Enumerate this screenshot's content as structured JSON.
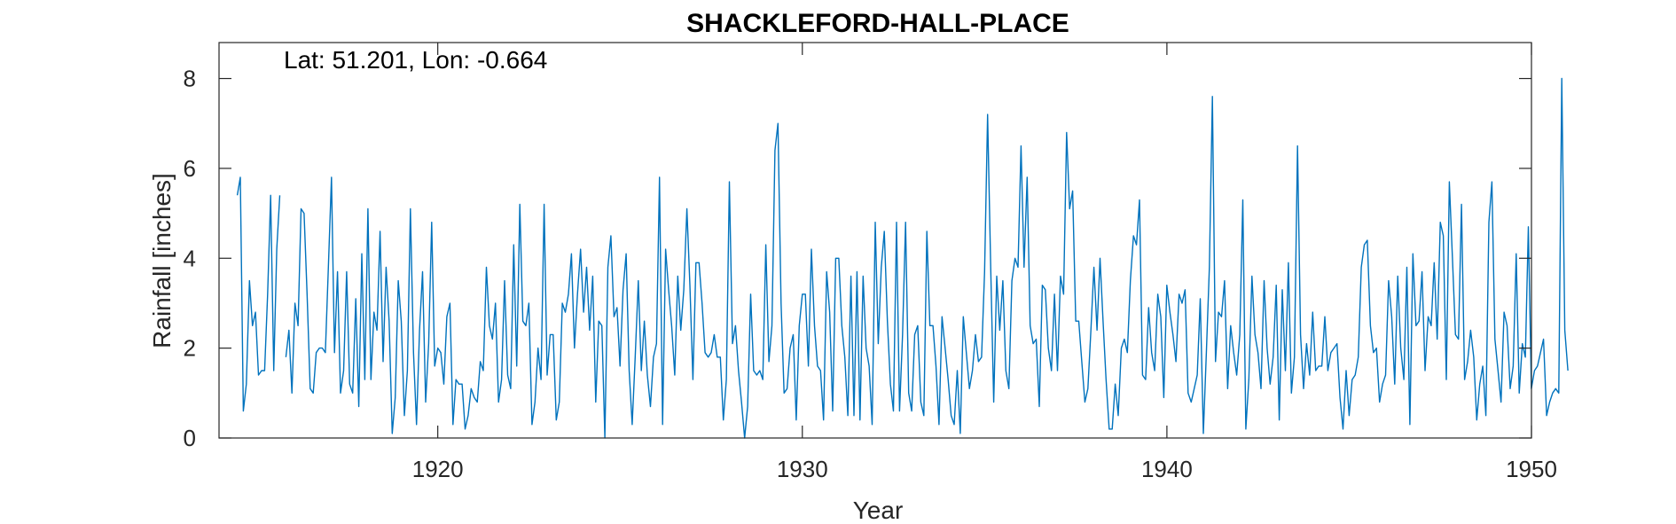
{
  "chart_data": {
    "type": "line",
    "title": "SHACKLEFORD-HALL-PLACE",
    "annotation": "Lat: 51.201, Lon: -0.664",
    "xlabel": "Year",
    "ylabel": "Rainfall [inches]",
    "xlim": [
      1914.0,
      1950.0
    ],
    "ylim": [
      0,
      8.8
    ],
    "xticks": [
      1920,
      1930,
      1940,
      1950
    ],
    "yticks": [
      0,
      2,
      4,
      6,
      8
    ],
    "grid": false,
    "line_color": "#0072BD",
    "series": [
      {
        "x_start": 1914.5,
        "x_step": 0.08333,
        "values": [
          5.4,
          5.8,
          0.6,
          1.2,
          3.5,
          2.5,
          2.8,
          1.4,
          1.5,
          1.5,
          3.2,
          5.4,
          1.5,
          4.2,
          5.4,
          null,
          1.8,
          2.4,
          1.0,
          3.0,
          2.5,
          5.1,
          5.0,
          3.2,
          1.1,
          1.0,
          1.9,
          2.0,
          2.0,
          1.9,
          3.8,
          5.8,
          1.9,
          3.7,
          1.0,
          1.5,
          3.7,
          1.2,
          1.0,
          3.1,
          0.7,
          4.1,
          1.3,
          5.1,
          1.3,
          2.8,
          2.4,
          4.6,
          1.7,
          3.8,
          2.6,
          0.1,
          0.9,
          3.5,
          2.6,
          0.5,
          1.5,
          5.1,
          1.9,
          0.3,
          2.4,
          3.7,
          0.8,
          2.1,
          4.8,
          1.6,
          2.0,
          1.9,
          1.2,
          2.7,
          3.0,
          0.3,
          1.3,
          1.2,
          1.2,
          0.2,
          0.5,
          1.1,
          0.9,
          0.8,
          1.7,
          1.5,
          3.8,
          2.5,
          2.2,
          3.0,
          0.8,
          1.3,
          3.5,
          1.4,
          1.1,
          4.3,
          1.6,
          5.2,
          2.6,
          2.5,
          3.0,
          0.3,
          0.8,
          2.0,
          1.3,
          5.2,
          1.4,
          2.3,
          2.3,
          0.4,
          0.8,
          3.0,
          2.8,
          3.2,
          4.1,
          2.0,
          3.2,
          4.2,
          2.8,
          3.8,
          2.4,
          3.6,
          0.8,
          2.6,
          2.5,
          0.0,
          3.8,
          4.5,
          2.7,
          2.9,
          1.6,
          3.3,
          4.1,
          1.5,
          0.3,
          1.8,
          3.5,
          1.5,
          2.6,
          1.4,
          0.7,
          1.8,
          2.1,
          5.8,
          0.3,
          4.2,
          3.3,
          2.5,
          1.4,
          3.6,
          2.4,
          3.3,
          5.1,
          3.4,
          1.3,
          3.9,
          3.9,
          3.0,
          1.9,
          1.8,
          1.9,
          2.3,
          1.8,
          1.8,
          0.4,
          1.3,
          5.7,
          2.1,
          2.5,
          1.5,
          0.8,
          0.0,
          0.7,
          3.2,
          1.5,
          1.4,
          1.5,
          1.3,
          4.3,
          1.7,
          2.5,
          6.4,
          7.0,
          3.0,
          1.0,
          1.1,
          2.0,
          2.3,
          0.4,
          2.5,
          3.2,
          3.2,
          1.6,
          4.2,
          2.5,
          1.6,
          1.5,
          0.4,
          3.7,
          2.8,
          0.6,
          4.0,
          4.0,
          2.5,
          1.8,
          0.5,
          3.6,
          0.5,
          3.7,
          0.4,
          3.6,
          2.0,
          1.6,
          0.3,
          4.8,
          2.1,
          3.8,
          4.6,
          2.6,
          1.2,
          0.6,
          4.8,
          0.6,
          2.3,
          4.8,
          1.0,
          0.6,
          2.3,
          2.5,
          0.8,
          0.5,
          4.6,
          2.5,
          2.5,
          1.6,
          0.3,
          2.7,
          2.0,
          1.3,
          0.5,
          0.3,
          1.5,
          0.1,
          2.7,
          1.9,
          1.1,
          1.5,
          2.3,
          1.7,
          1.8,
          3.7,
          7.2,
          3.8,
          0.8,
          3.6,
          2.4,
          3.5,
          1.5,
          1.1,
          3.5,
          4.0,
          3.8,
          6.5,
          3.8,
          5.8,
          2.5,
          2.1,
          2.2,
          0.7,
          3.4,
          3.3,
          2.0,
          1.5,
          3.2,
          1.5,
          3.6,
          3.2,
          6.8,
          5.1,
          5.5,
          2.6,
          2.6,
          1.7,
          0.8,
          1.1,
          2.4,
          3.8,
          2.4,
          4.0,
          2.6,
          1.3,
          0.2,
          0.2,
          1.2,
          0.5,
          2.0,
          2.2,
          1.9,
          3.5,
          4.5,
          4.3,
          5.3,
          1.4,
          1.3,
          2.9,
          1.9,
          1.5,
          3.2,
          2.7,
          0.9,
          3.4,
          2.8,
          2.3,
          1.7,
          3.2,
          3.0,
          3.3,
          1.0,
          0.8,
          1.1,
          1.4,
          3.1,
          0.1,
          1.9,
          3.8,
          7.6,
          1.7,
          2.8,
          2.7,
          3.5,
          1.1,
          2.5,
          1.9,
          1.4,
          2.3,
          5.3,
          0.2,
          1.3,
          3.6,
          2.3,
          1.9,
          1.1,
          3.5,
          2.0,
          1.2,
          1.8,
          3.4,
          0.4,
          3.3,
          1.5,
          3.9,
          1.0,
          1.8,
          6.5,
          2.3,
          1.1,
          2.1,
          1.4,
          2.8,
          1.5,
          1.6,
          1.6,
          2.7,
          1.5,
          1.9,
          2.0,
          2.1,
          0.9,
          0.2,
          1.5,
          0.5,
          1.3,
          1.4,
          1.8,
          3.8,
          4.3,
          4.4,
          2.5,
          1.9,
          2.0,
          0.8,
          1.2,
          1.4,
          3.5,
          2.7,
          1.2,
          3.6,
          2.0,
          1.3,
          3.8,
          0.3,
          4.1,
          2.5,
          2.6,
          3.7,
          1.5,
          2.7,
          2.5,
          3.9,
          2.2,
          4.8,
          4.5,
          1.3,
          5.7,
          4.0,
          2.3,
          2.2,
          5.2,
          1.3,
          1.7,
          2.4,
          1.8,
          0.4,
          1.2,
          1.6,
          0.5,
          4.8,
          5.7,
          2.2,
          1.5,
          0.8,
          2.8,
          2.5,
          1.1,
          1.6,
          4.1,
          1.0,
          2.1,
          1.8,
          4.7,
          1.1,
          1.5,
          1.6,
          1.9,
          2.2,
          0.5,
          0.8,
          1.0,
          1.1,
          1.0,
          8.0,
          2.4,
          1.5
        ]
      }
    ]
  }
}
